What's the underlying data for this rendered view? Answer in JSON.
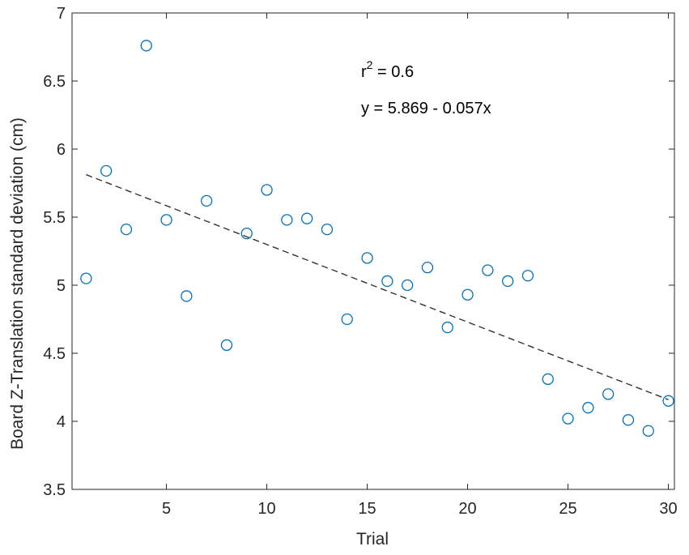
{
  "chart_data": {
    "type": "scatter",
    "title": "",
    "xlabel": "Trial",
    "ylabel": "Board Z-Translation standard deviation (cm)",
    "xlim": [
      0.3,
      30.3
    ],
    "ylim": [
      3.5,
      7
    ],
    "xticks": [
      "5",
      "10",
      "15",
      "20",
      "25",
      "30"
    ],
    "yticks": [
      "3.5",
      "4",
      "4.5",
      "5",
      "5.5",
      "6",
      "6.5",
      "7"
    ],
    "grid": false,
    "legend": "none",
    "marker_color": "#0072BD",
    "trend_color": "#333333",
    "points": [
      {
        "x": 1,
        "y": 5.05
      },
      {
        "x": 2,
        "y": 5.84
      },
      {
        "x": 3,
        "y": 5.41
      },
      {
        "x": 4,
        "y": 6.76
      },
      {
        "x": 5,
        "y": 5.48
      },
      {
        "x": 6,
        "y": 4.92
      },
      {
        "x": 7,
        "y": 5.62
      },
      {
        "x": 8,
        "y": 4.56
      },
      {
        "x": 9,
        "y": 5.38
      },
      {
        "x": 10,
        "y": 5.7
      },
      {
        "x": 11,
        "y": 5.48
      },
      {
        "x": 12,
        "y": 5.49
      },
      {
        "x": 13,
        "y": 5.41
      },
      {
        "x": 14,
        "y": 4.75
      },
      {
        "x": 15,
        "y": 5.2
      },
      {
        "x": 16,
        "y": 5.03
      },
      {
        "x": 17,
        "y": 5.0
      },
      {
        "x": 18,
        "y": 5.13
      },
      {
        "x": 19,
        "y": 4.69
      },
      {
        "x": 20,
        "y": 4.93
      },
      {
        "x": 21,
        "y": 5.11
      },
      {
        "x": 22,
        "y": 5.03
      },
      {
        "x": 23,
        "y": 5.07
      },
      {
        "x": 24,
        "y": 4.31
      },
      {
        "x": 25,
        "y": 4.02
      },
      {
        "x": 26,
        "y": 4.1
      },
      {
        "x": 27,
        "y": 4.2
      },
      {
        "x": 28,
        "y": 4.01
      },
      {
        "x": 29,
        "y": 3.93
      },
      {
        "x": 30,
        "y": 4.15
      }
    ],
    "trendline": {
      "x": [
        1,
        30
      ],
      "y": [
        5.812,
        4.159
      ],
      "intercept": 5.869,
      "slope": -0.057,
      "style": "dashed"
    },
    "annotations": {
      "r2_prefix": "r",
      "r2_sup": "2",
      "r2_value": " = 0.6",
      "equation": "y = 5.869 - 0.057x"
    }
  }
}
